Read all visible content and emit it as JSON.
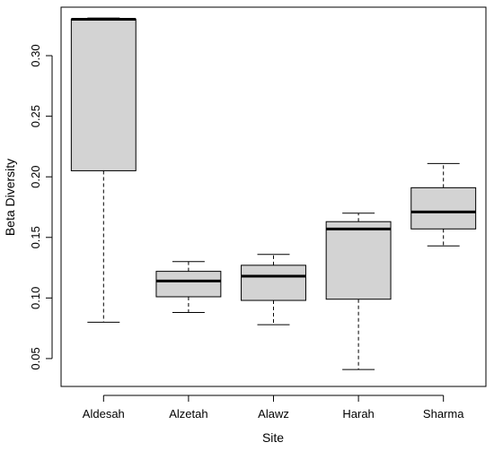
{
  "chart_data": {
    "type": "boxplot",
    "xlabel": "Site",
    "ylabel": "Beta Diversity",
    "ylim": [
      0.027,
      0.34
    ],
    "yticks": [
      0.05,
      0.1,
      0.15,
      0.2,
      0.25,
      0.3
    ],
    "ytick_labels": [
      "0.05",
      "0.10",
      "0.15",
      "0.20",
      "0.25",
      "0.30"
    ],
    "grid": false,
    "legend": "none",
    "box_fill": "#d3d3d3",
    "categories": [
      "Aldesah",
      "Alzetah",
      "Alawz",
      "Harah",
      "Sharma"
    ],
    "boxes": [
      {
        "category": "Aldesah",
        "whisker_low": 0.08,
        "q1": 0.205,
        "median": 0.33,
        "q3": 0.33,
        "whisker_high": 0.331
      },
      {
        "category": "Alzetah",
        "whisker_low": 0.088,
        "q1": 0.101,
        "median": 0.114,
        "q3": 0.122,
        "whisker_high": 0.13
      },
      {
        "category": "Alawz",
        "whisker_low": 0.078,
        "q1": 0.098,
        "median": 0.118,
        "q3": 0.127,
        "whisker_high": 0.136
      },
      {
        "category": "Harah",
        "whisker_low": 0.041,
        "q1": 0.099,
        "median": 0.157,
        "q3": 0.163,
        "whisker_high": 0.17
      },
      {
        "category": "Sharma",
        "whisker_low": 0.143,
        "q1": 0.157,
        "median": 0.171,
        "q3": 0.191,
        "whisker_high": 0.211
      }
    ]
  }
}
